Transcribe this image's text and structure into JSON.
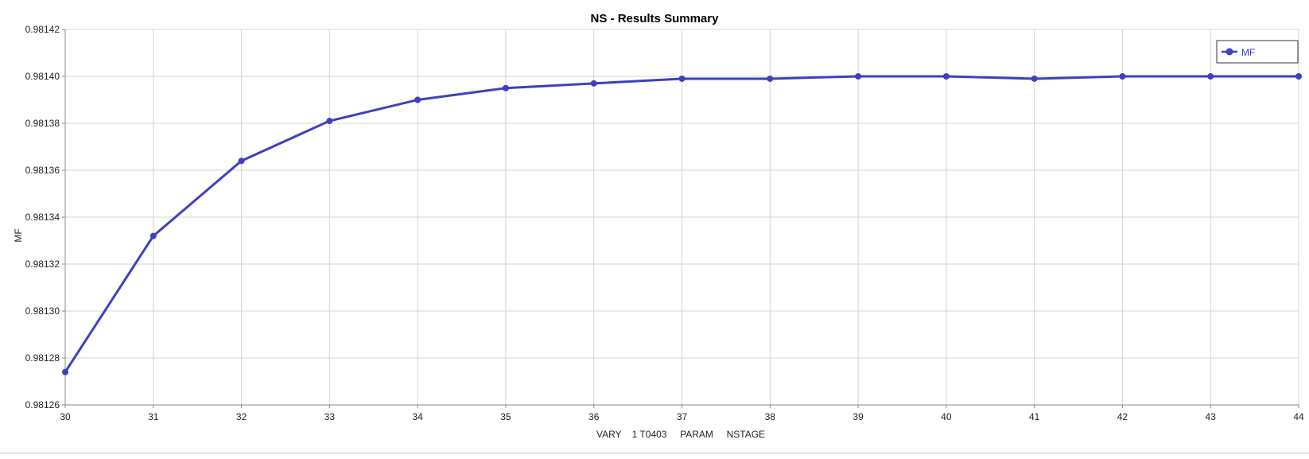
{
  "chart_data": {
    "type": "line",
    "title": "NS - Results Summary",
    "xlabel": "VARY    1 T0403     PARAM     NSTAGE",
    "ylabel": "MF",
    "xlim": [
      30,
      44
    ],
    "ylim": [
      0.98126,
      0.98142
    ],
    "x_ticks": [
      "30",
      "31",
      "32",
      "33",
      "34",
      "35",
      "36",
      "37",
      "38",
      "39",
      "40",
      "41",
      "42",
      "43",
      "44"
    ],
    "y_ticks": [
      "0.98142",
      "0.98140",
      "0.98138",
      "0.98136",
      "0.98134",
      "0.98132",
      "0.98130",
      "0.98128",
      "0.98126"
    ],
    "grid": true,
    "legend_position": "top-right",
    "series": [
      {
        "name": "MF",
        "color": "#3f3fbf",
        "x": [
          30,
          31,
          32,
          33,
          34,
          35,
          36,
          37,
          38,
          39,
          40,
          41,
          42,
          43,
          44
        ],
        "y": [
          0.981274,
          0.981332,
          0.981364,
          0.981381,
          0.98139,
          0.981395,
          0.981397,
          0.981399,
          0.981399,
          0.9814,
          0.9814,
          0.981399,
          0.9814,
          0.9814,
          0.9814
        ]
      }
    ]
  }
}
